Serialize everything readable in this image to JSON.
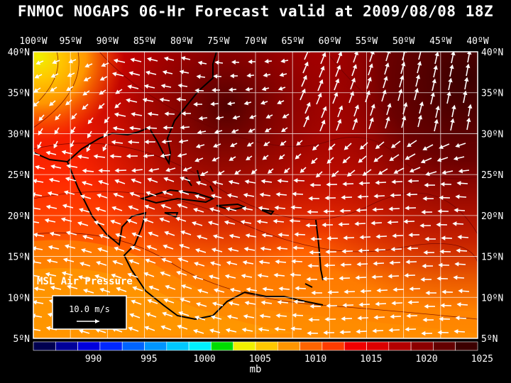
{
  "title": "FNMOC NOGAPS 06-Hr Forecast valid at 2009/08/08 18Z",
  "field_label": "MSL Air Pressure",
  "vector_scale_label": "10.0 m/s",
  "units": "mb",
  "lon_labels": [
    "100ºW",
    "95ºW",
    "90ºW",
    "85ºW",
    "80ºW",
    "75ºW",
    "70ºW",
    "65ºW",
    "60ºW",
    "55ºW",
    "50ºW",
    "45ºW",
    "40ºW"
  ],
  "lat_labels": [
    "40ºN",
    "35ºN",
    "30ºN",
    "25ºN",
    "20ºN",
    "15ºN",
    "10ºN",
    "5ºN"
  ],
  "colorbar": {
    "colors": [
      "#000050",
      "#00009a",
      "#0000dc",
      "#0028ff",
      "#0064ff",
      "#0096ff",
      "#00c8ff",
      "#00f0ff",
      "#00dc00",
      "#f0f000",
      "#ffc800",
      "#ff9600",
      "#ff6400",
      "#ff3c00",
      "#f00000",
      "#dc0000",
      "#b40000",
      "#8c0000",
      "#640000",
      "#3c0000"
    ],
    "labels": [
      "990",
      "995",
      "1000",
      "1005",
      "1010",
      "1015",
      "1020",
      "1025"
    ]
  },
  "colors": {
    "land_outline": "#000000",
    "grid": "#ffffff",
    "vectors": "#ffffff"
  }
}
